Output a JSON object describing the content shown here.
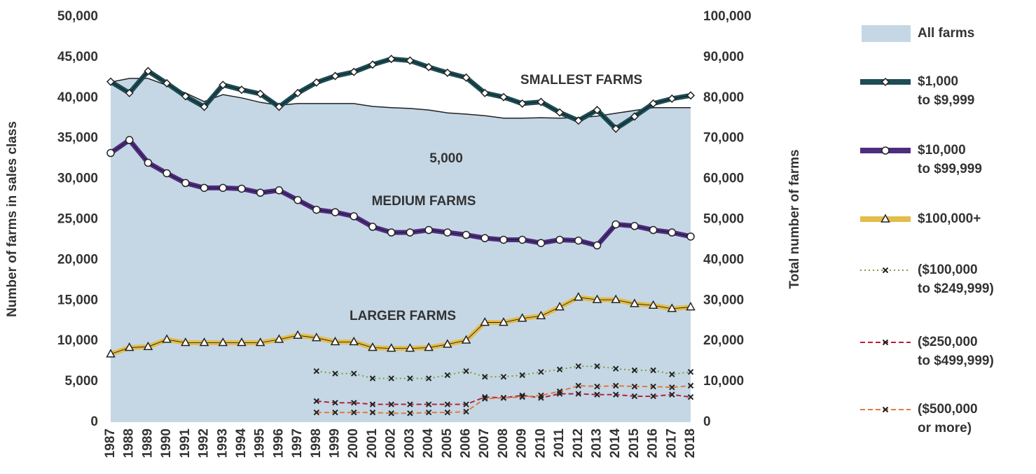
{
  "chart_data": {
    "type": "line",
    "y_label": "Number of farms in sales class",
    "y2_label": "Total number of farms",
    "x": [
      "1987",
      "1988",
      "1989",
      "1990",
      "1991",
      "1992",
      "1993",
      "1994",
      "1995",
      "1996",
      "1997",
      "1998",
      "1999",
      "2000",
      "2001",
      "2002",
      "2003",
      "2004",
      "2005",
      "2006",
      "2007",
      "2008",
      "2009",
      "2010",
      "2011",
      "2012",
      "2013",
      "2014",
      "2015",
      "2016",
      "2017",
      "2018"
    ],
    "ylim": [
      0,
      50000
    ],
    "yticks": [
      0,
      {
        "value": 5000,
        "label": "5,000"
      },
      {
        "value": 10000,
        "label": "10,000"
      },
      {
        "value": 15000,
        "label": "15,000"
      },
      {
        "value": 20000,
        "label": "20,000"
      },
      {
        "value": 25000,
        "label": "25,000"
      },
      {
        "value": 30000,
        "label": "30,000"
      },
      {
        "value": 35000,
        "label": "35,000"
      },
      {
        "value": 40000,
        "label": "40,000"
      },
      {
        "value": 45000,
        "label": "45,000"
      },
      {
        "value": 50000,
        "label": "50,000"
      }
    ],
    "y2lim": [
      0,
      100000
    ],
    "y2ticks": [
      0,
      {
        "value": 10000,
        "label": "10,000"
      },
      {
        "value": 20000,
        "label": "20,000"
      },
      {
        "value": 30000,
        "label": "30,000"
      },
      {
        "value": 40000,
        "label": "40,000"
      },
      {
        "value": 50000,
        "label": "50,000"
      },
      {
        "value": 60000,
        "label": "60,000"
      },
      {
        "value": 70000,
        "label": "70,000"
      },
      {
        "value": 80000,
        "label": "80,000"
      },
      {
        "value": 90000,
        "label": "90,000"
      },
      {
        "value": 100000,
        "label": "100,000"
      }
    ],
    "legend": "right",
    "series": [
      {
        "name": "All farms",
        "color": "#c5d7e5",
        "style": "area",
        "axis": "y2",
        "values": [
          83900,
          84800,
          84800,
          83100,
          81200,
          79100,
          80800,
          80000,
          78900,
          78200,
          78600,
          78600,
          78600,
          78600,
          77900,
          77600,
          77400,
          77000,
          76300,
          76000,
          75600,
          75000,
          75000,
          75100,
          75000,
          75100,
          75500,
          76200,
          76900,
          77600,
          77600,
          77600
        ]
      },
      {
        "name": "$1,000 to $9,999",
        "color": "#1d4d55",
        "style": "solid",
        "marker": "diamond",
        "values": [
          42000,
          40600,
          43300,
          41800,
          40200,
          38900,
          41600,
          41000,
          40500,
          38900,
          40600,
          41900,
          42700,
          43200,
          44100,
          44800,
          44600,
          43800,
          43100,
          42500,
          40600,
          40100,
          39300,
          39500,
          38200,
          37200,
          38500,
          36200,
          37700,
          39300,
          39900,
          40300
        ]
      },
      {
        "name": "$10,000 to $99,999",
        "color": "#4e2d7f",
        "style": "solid",
        "marker": "circle",
        "values": [
          33200,
          34800,
          32000,
          30700,
          29500,
          28900,
          28900,
          28800,
          28300,
          28600,
          27400,
          26200,
          25900,
          25400,
          24100,
          23400,
          23400,
          23700,
          23400,
          23100,
          22700,
          22500,
          22500,
          22100,
          22500,
          22400,
          21800,
          24400,
          24200,
          23700,
          23400,
          22900
        ]
      },
      {
        "name": "$100,000+",
        "color": "#e3bc4a",
        "style": "solid",
        "marker": "triangle",
        "values": [
          8400,
          9200,
          9300,
          10200,
          9800,
          9800,
          9800,
          9800,
          9800,
          10200,
          10700,
          10400,
          9900,
          9900,
          9200,
          9100,
          9100,
          9200,
          9600,
          10100,
          12300,
          12300,
          12800,
          13100,
          14200,
          15400,
          15100,
          15100,
          14600,
          14400,
          14000,
          14200
        ]
      },
      {
        "name": "($100,000 to $249,999)",
        "color": "#7f9a3a",
        "style": "dotted",
        "marker": "x",
        "values": [
          null,
          null,
          null,
          null,
          null,
          null,
          null,
          null,
          null,
          null,
          null,
          6300,
          6000,
          6000,
          5400,
          5400,
          5400,
          5400,
          5800,
          6300,
          5600,
          5600,
          5800,
          6200,
          6500,
          6900,
          6900,
          6600,
          6400,
          6400,
          5900,
          6200
        ]
      },
      {
        "name": "($250,000 to $499,999)",
        "color": "#b5203c",
        "style": "dashed",
        "marker": "x",
        "values": [
          null,
          null,
          null,
          null,
          null,
          null,
          null,
          null,
          null,
          null,
          null,
          2600,
          2400,
          2400,
          2200,
          2200,
          2200,
          2200,
          2200,
          2200,
          3100,
          3000,
          3300,
          3000,
          3500,
          3500,
          3400,
          3400,
          3200,
          3200,
          3400,
          3100
        ]
      },
      {
        "name": "($500,000 or more)",
        "color": "#e07a3a",
        "style": "dashed",
        "marker": "x",
        "values": [
          null,
          null,
          null,
          null,
          null,
          null,
          null,
          null,
          null,
          null,
          null,
          1200,
          1200,
          1200,
          1200,
          1100,
          1100,
          1200,
          1200,
          1300,
          2900,
          3000,
          3100,
          3300,
          3800,
          4500,
          4400,
          4500,
          4400,
          4400,
          4300,
          4500
        ]
      }
    ],
    "annotations": [
      "SMALLEST FARMS",
      "5,000",
      "MEDIUM FARMS",
      "LARGER FARMS"
    ]
  }
}
